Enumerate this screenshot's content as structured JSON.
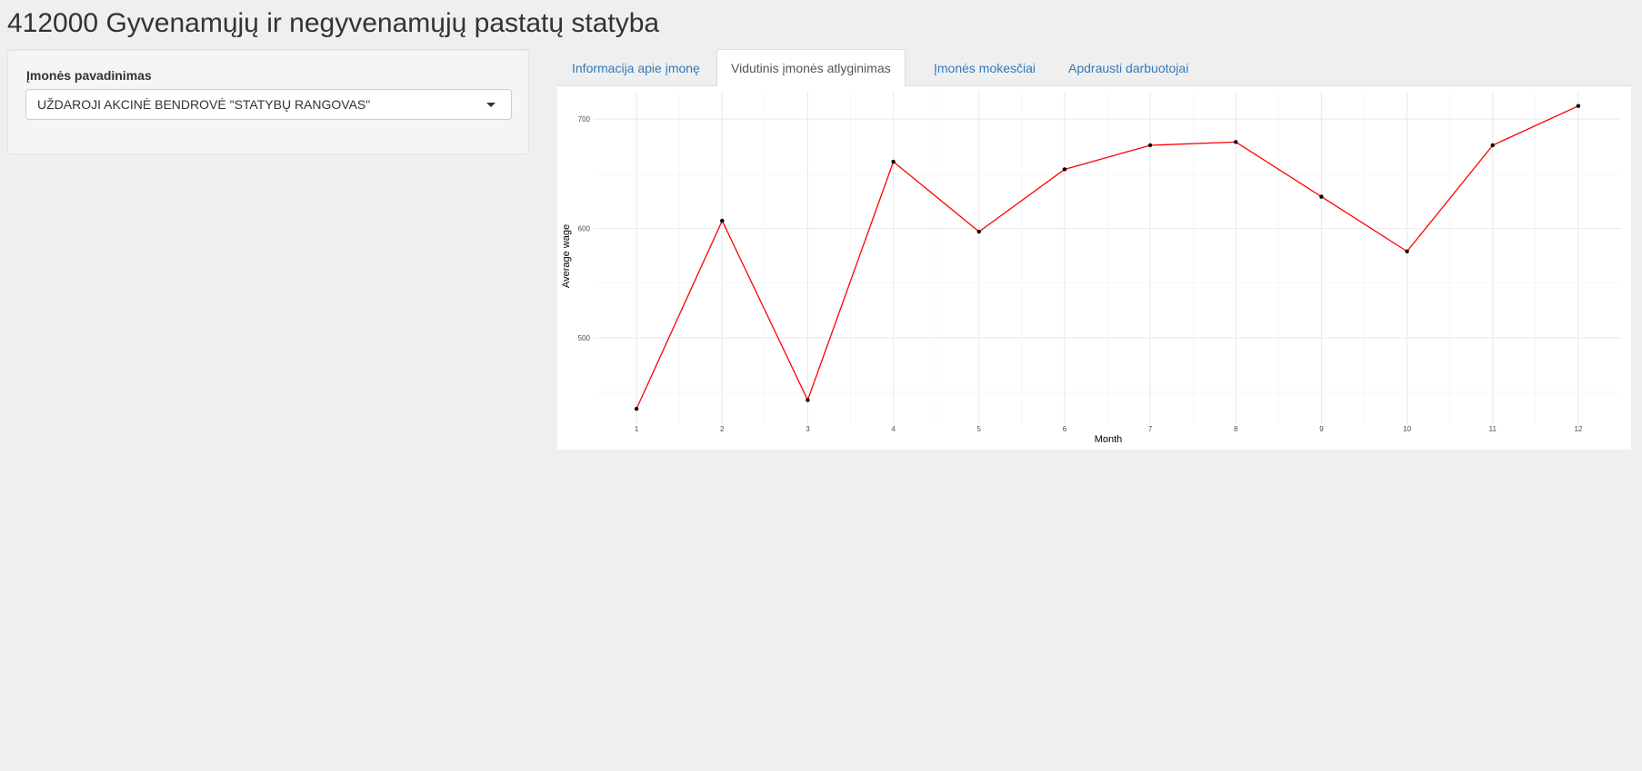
{
  "page": {
    "title": "412000 Gyvenamųjų ir negyvenamųjų pastatų statyba"
  },
  "sidebar": {
    "company_label": "Įmonės pavadinimas",
    "company_selected": "UŽDAROJI AKCINĖ BENDROVĖ \"STATYBŲ RANGOVAS\""
  },
  "tabs": [
    {
      "label": "Informacija apie įmonę",
      "active": false
    },
    {
      "label": "Vidutinis įmonės atlyginimas",
      "active": true
    },
    {
      "label": "Įmonės mokesčiai",
      "active": false
    },
    {
      "label": "Apdrausti darbuotojai",
      "active": false
    }
  ],
  "colors": {
    "line": "#ff0000",
    "points": "#000000",
    "link": "#337ab7"
  },
  "chart_data": {
    "type": "line",
    "xlabel": "Month",
    "ylabel": "Average wage",
    "x": [
      1,
      2,
      3,
      4,
      5,
      6,
      7,
      8,
      9,
      10,
      11,
      12
    ],
    "values": [
      435,
      607,
      443,
      661,
      597,
      654,
      676,
      679,
      629,
      579,
      676,
      712
    ],
    "xticks": [
      1,
      2,
      3,
      4,
      5,
      6,
      7,
      8,
      9,
      10,
      11,
      12
    ],
    "yticks": [
      500,
      600,
      700
    ],
    "xlim": [
      0.5,
      12.5
    ],
    "ylim": [
      421,
      725
    ],
    "grid": true,
    "legend": "none"
  }
}
